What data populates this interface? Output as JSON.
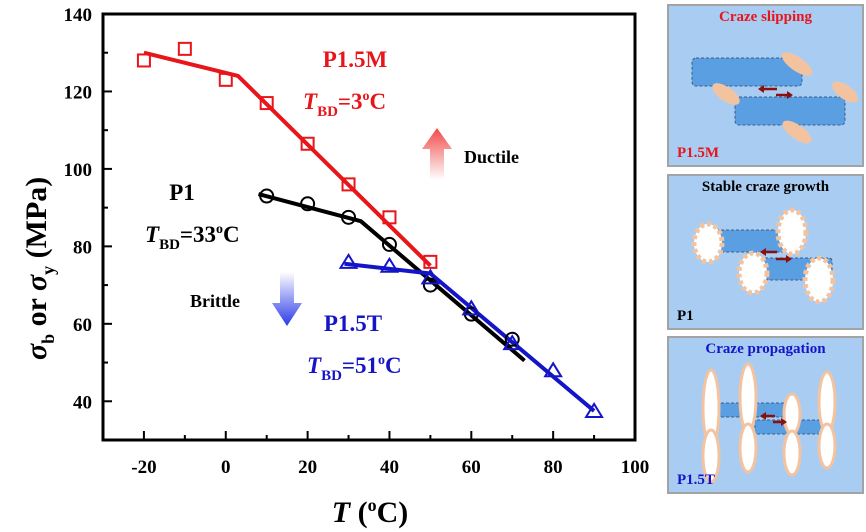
{
  "chart_data": {
    "type": "line",
    "xlabel_var": "T",
    "xlabel_unit": "(oC)",
    "ylabel_parts": [
      "σ",
      "b",
      "or",
      "σ",
      "y",
      "(MPa)"
    ],
    "xlim": [
      -30,
      100
    ],
    "ylim": [
      30,
      140
    ],
    "xticks": [
      -20,
      0,
      20,
      40,
      60,
      80,
      100
    ],
    "yticks": [
      40,
      60,
      80,
      100,
      120,
      140
    ],
    "series": [
      {
        "name": "P1.5M",
        "color": "#e8151b",
        "marker": "square",
        "x": [
          -20,
          -10,
          0,
          10,
          20,
          30,
          40,
          50
        ],
        "y": [
          128,
          131,
          123,
          117,
          106.5,
          96,
          87.5,
          76
        ],
        "fit": [
          [
            -20,
            130
          ],
          [
            3,
            124
          ],
          [
            50,
            75
          ]
        ]
      },
      {
        "name": "P1",
        "color": "#000000",
        "marker": "circle",
        "x": [
          10,
          20,
          30,
          40,
          50,
          60,
          70
        ],
        "y": [
          93,
          91,
          87.5,
          80.5,
          70,
          62.5,
          56
        ],
        "fit": [
          [
            8,
            93.5
          ],
          [
            33,
            86.5
          ],
          [
            73,
            50.5
          ]
        ]
      },
      {
        "name": "P1.5T",
        "color": "#1515c8",
        "marker": "triangle",
        "x": [
          30,
          40,
          50,
          60,
          70,
          80,
          90
        ],
        "y": [
          76,
          75,
          72,
          64,
          55,
          48,
          37.5
        ],
        "fit": [
          [
            29,
            75.5
          ],
          [
            50,
            73
          ],
          [
            90,
            37.5
          ]
        ]
      }
    ],
    "annotations": [
      {
        "name": "P1.5M",
        "tbd_value": "=3",
        "color": "#e8151b"
      },
      {
        "name": "P1",
        "tbd_value": "=33",
        "color": "#000000"
      },
      {
        "name": "P1.5T",
        "tbd_value": "=51",
        "color": "#1515c8"
      }
    ],
    "tbd_symbol": "T",
    "tbd_subscript": "BD",
    "degree_unit": "oC",
    "ductile_label": "Ductile",
    "brittle_label": "Brittle"
  },
  "panels": [
    {
      "title": "Craze slipping",
      "title_color": "#e8151b",
      "label": "P1.5M",
      "label_color": "#e8151b"
    },
    {
      "title": "Stable craze growth",
      "title_color": "#000000",
      "label": "P1",
      "label_color": "#000000"
    },
    {
      "title": "Craze propagation",
      "title_color": "#1515c8",
      "label": "P1.5T",
      "label_color": "#1515c8"
    }
  ]
}
